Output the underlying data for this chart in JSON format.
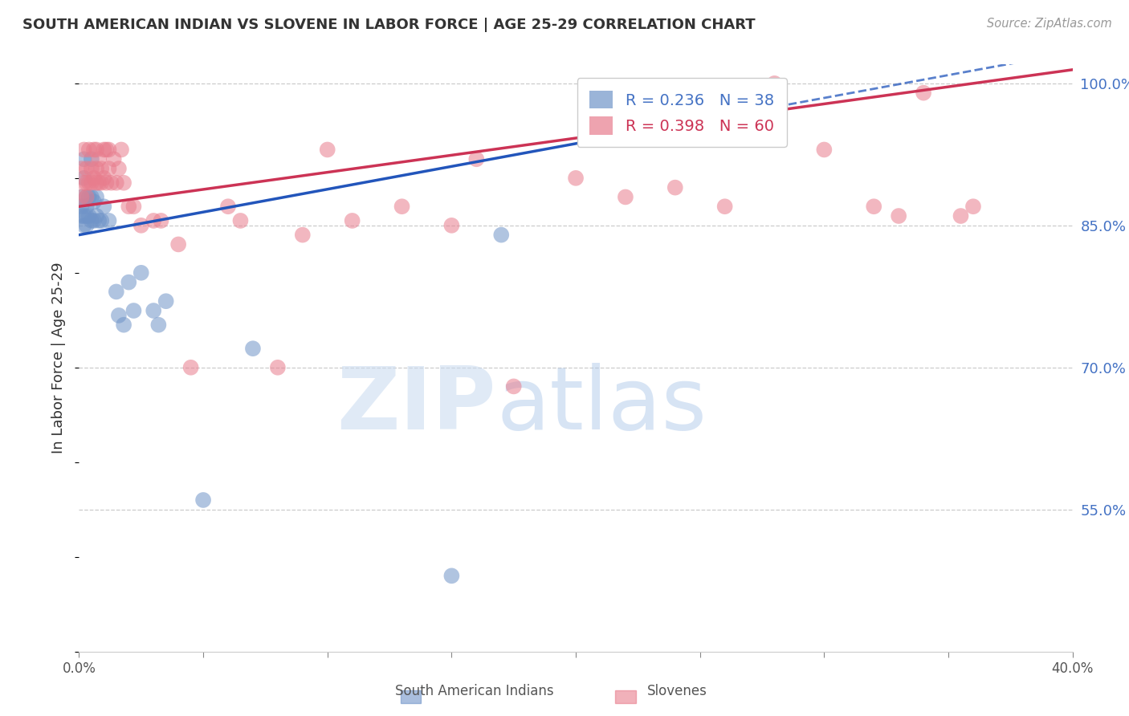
{
  "title": "SOUTH AMERICAN INDIAN VS SLOVENE IN LABOR FORCE | AGE 25-29 CORRELATION CHART",
  "source": "Source: ZipAtlas.com",
  "ylabel": "In Labor Force | Age 25-29",
  "xlim": [
    0.0,
    0.4
  ],
  "ylim": [
    0.4,
    1.02
  ],
  "yticks_right": [
    0.55,
    0.7,
    0.85,
    1.0
  ],
  "yticklabels_right": [
    "55.0%",
    "70.0%",
    "85.0%",
    "100.0%"
  ],
  "blue_R": 0.236,
  "blue_N": 38,
  "pink_R": 0.398,
  "pink_N": 60,
  "blue_color": "#7094c8",
  "pink_color": "#e87d8d",
  "blue_legend": "South American Indians",
  "pink_legend": "Slovenes",
  "watermark_zip": "ZIP",
  "watermark_atlas": "atlas",
  "grid_color": "#cccccc",
  "background_color": "#ffffff",
  "blue_scatter_x": [
    0.001,
    0.001,
    0.001,
    0.002,
    0.002,
    0.002,
    0.002,
    0.003,
    0.003,
    0.003,
    0.003,
    0.004,
    0.004,
    0.005,
    0.005,
    0.005,
    0.006,
    0.006,
    0.007,
    0.007,
    0.008,
    0.009,
    0.01,
    0.012,
    0.015,
    0.016,
    0.018,
    0.02,
    0.022,
    0.025,
    0.03,
    0.032,
    0.035,
    0.05,
    0.07,
    0.15,
    0.17,
    0.28
  ],
  "blue_scatter_y": [
    0.87,
    0.88,
    0.86,
    0.92,
    0.9,
    0.86,
    0.85,
    0.88,
    0.87,
    0.86,
    0.85,
    0.88,
    0.86,
    0.92,
    0.88,
    0.855,
    0.875,
    0.855,
    0.88,
    0.86,
    0.855,
    0.855,
    0.87,
    0.855,
    0.78,
    0.755,
    0.745,
    0.79,
    0.76,
    0.8,
    0.76,
    0.745,
    0.77,
    0.56,
    0.72,
    0.48,
    0.84,
    0.975
  ],
  "pink_scatter_x": [
    0.001,
    0.001,
    0.002,
    0.002,
    0.003,
    0.003,
    0.003,
    0.004,
    0.004,
    0.005,
    0.005,
    0.006,
    0.006,
    0.007,
    0.007,
    0.007,
    0.008,
    0.008,
    0.009,
    0.009,
    0.01,
    0.01,
    0.011,
    0.011,
    0.012,
    0.012,
    0.013,
    0.014,
    0.015,
    0.016,
    0.017,
    0.018,
    0.02,
    0.022,
    0.025,
    0.03,
    0.033,
    0.04,
    0.045,
    0.06,
    0.065,
    0.08,
    0.09,
    0.1,
    0.11,
    0.13,
    0.15,
    0.16,
    0.175,
    0.2,
    0.22,
    0.24,
    0.26,
    0.28,
    0.3,
    0.32,
    0.33,
    0.34,
    0.355,
    0.36
  ],
  "pink_scatter_y": [
    0.91,
    0.88,
    0.93,
    0.895,
    0.91,
    0.895,
    0.88,
    0.93,
    0.895,
    0.91,
    0.895,
    0.93,
    0.9,
    0.93,
    0.91,
    0.895,
    0.92,
    0.895,
    0.91,
    0.895,
    0.93,
    0.9,
    0.93,
    0.895,
    0.93,
    0.91,
    0.895,
    0.92,
    0.895,
    0.91,
    0.93,
    0.895,
    0.87,
    0.87,
    0.85,
    0.855,
    0.855,
    0.83,
    0.7,
    0.87,
    0.855,
    0.7,
    0.84,
    0.93,
    0.855,
    0.87,
    0.85,
    0.92,
    0.68,
    0.9,
    0.88,
    0.89,
    0.87,
    1.0,
    0.93,
    0.87,
    0.86,
    0.99,
    0.86,
    0.87
  ]
}
